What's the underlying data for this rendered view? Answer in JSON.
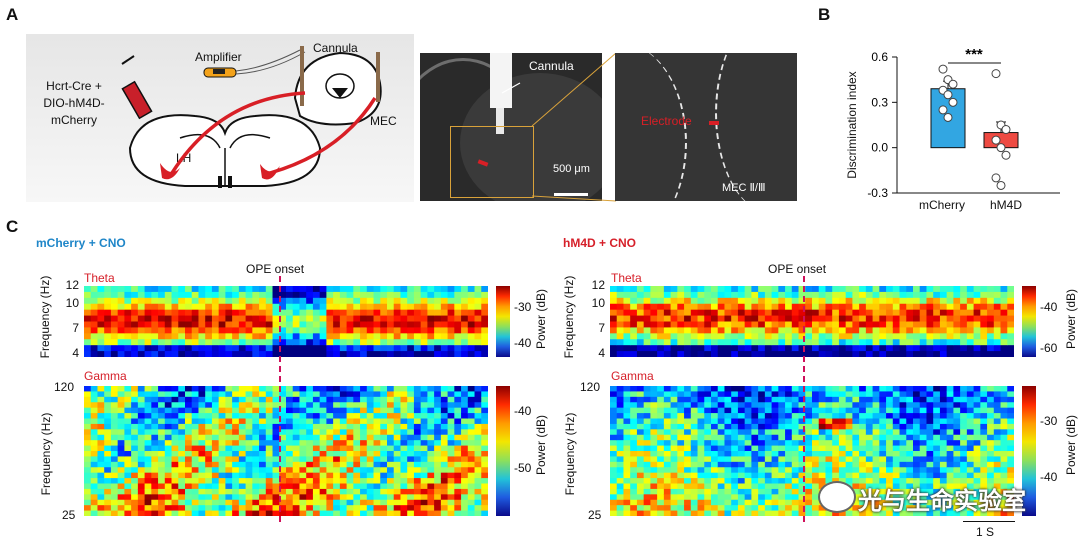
{
  "panels": {
    "A": "A",
    "B": "B",
    "C": "C"
  },
  "panelA": {
    "mouse_label": "Hcrt-Cre +\nDIO-hM4D-\nmCherry",
    "amplifier": "Amplifier",
    "cannula": "Cannula",
    "lh": "LH",
    "mec": "MEC",
    "micrograph_cannula": "Cannula",
    "scale_bar": "500 μm",
    "electrode": "Electrode",
    "mec_layer": "MEC Ⅱ/Ⅲ"
  },
  "chart_data": [
    {
      "type": "bar",
      "id": "B",
      "title": "",
      "ylabel": "Discrimination index",
      "xlabel": "",
      "categories": [
        "mCherry",
        "hM4D"
      ],
      "values": [
        0.39,
        0.1
      ],
      "errors": [
        0.05,
        0.07
      ],
      "colors": [
        "#32a6e2",
        "#ee4a42"
      ],
      "points": [
        [
          0.52,
          0.45,
          0.42,
          0.38,
          0.35,
          0.3,
          0.25,
          0.2
        ],
        [
          0.49,
          0.15,
          0.12,
          0.05,
          0.0,
          -0.05,
          -0.2,
          -0.25
        ]
      ],
      "ylim": [
        -0.3,
        0.6
      ],
      "yticks": [
        "0.6",
        "0.3",
        "0.0",
        "-0.3"
      ],
      "significance": "***"
    },
    {
      "type": "heatmap",
      "id": "C-left",
      "condition": "mCherry + CNO",
      "event": "OPE onset",
      "ylabel": "Frequency (Hz)",
      "colorbar_label": "Power (dB)",
      "theta": {
        "label": "Theta",
        "yticks": [
          "12",
          "10",
          "7",
          "4"
        ],
        "colorbar_ticks": [
          "-30",
          "-40"
        ]
      },
      "gamma": {
        "label": "Gamma",
        "yticks": [
          "120",
          "25"
        ],
        "colorbar_ticks": [
          "-40",
          "-50"
        ]
      }
    },
    {
      "type": "heatmap",
      "id": "C-right",
      "condition": "hM4D + CNO",
      "event": "OPE onset",
      "ylabel": "Frequency (Hz)",
      "colorbar_label": "Power (dB)",
      "theta": {
        "label": "Theta",
        "yticks": [
          "12",
          "10",
          "7",
          "4"
        ],
        "colorbar_ticks": [
          "-40",
          "-60"
        ]
      },
      "gamma": {
        "label": "Gamma",
        "yticks": [
          "120",
          "25"
        ],
        "colorbar_ticks": [
          "-30",
          "-40"
        ]
      },
      "time_scale": "1 S"
    }
  ],
  "watermark": "光与生命实验室"
}
